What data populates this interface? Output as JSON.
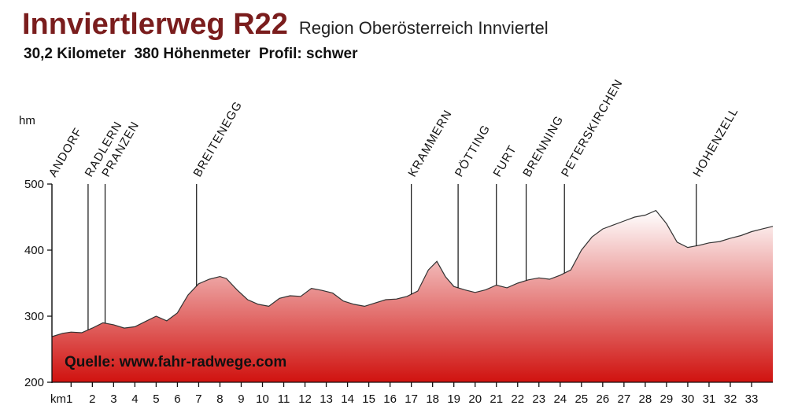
{
  "header": {
    "title": "Innviertlerweg R22",
    "region": "Region Oberösterreich Innviertel",
    "subtitle": "30,2 Kilometer  380 Höhenmeter  Profil: schwer"
  },
  "colors": {
    "title": "#7a1d1d",
    "fill_top": "#ffffff",
    "fill_bottom": "#d0120f"
  },
  "chart_data": {
    "type": "area",
    "title": "Innviertlerweg R22",
    "ylabel": "hm",
    "xlabel": "km1",
    "ylim": [
      200,
      500
    ],
    "xlim": [
      0.1,
      34.0
    ],
    "y_ticks": [
      "200",
      "300",
      "400",
      "500"
    ],
    "x_ticks": [
      "2",
      "3",
      "4",
      "5",
      "6",
      "7",
      "8",
      "9",
      "10",
      "11",
      "12",
      "13",
      "14",
      "15",
      "16",
      "17",
      "18",
      "19",
      "20",
      "21",
      "22",
      "23",
      "24",
      "25",
      "26",
      "27",
      "28",
      "29",
      "30",
      "31",
      "32",
      "33"
    ],
    "source_label": "Quelle: www.fahr-radwege.com",
    "places": [
      {
        "name": "ANDORF",
        "km": 0.1
      },
      {
        "name": "RADLERN",
        "km": 1.8
      },
      {
        "name": "PRANZEN",
        "km": 2.6
      },
      {
        "name": "BREITENEGG",
        "km": 6.9
      },
      {
        "name": "KRAMMERN",
        "km": 17.0
      },
      {
        "name": "PÖTTING",
        "km": 19.2
      },
      {
        "name": "FURT",
        "km": 21.0
      },
      {
        "name": "BRENNING",
        "km": 22.4
      },
      {
        "name": "PETERSKIRCHEN",
        "km": 24.2
      },
      {
        "name": "HOHENZELL",
        "km": 30.4
      }
    ],
    "x": [
      0.1,
      0.6,
      1.0,
      1.5,
      2.0,
      2.5,
      3.0,
      3.5,
      4.0,
      4.5,
      5.0,
      5.5,
      6.0,
      6.5,
      7.0,
      7.5,
      8.0,
      8.3,
      8.8,
      9.3,
      9.8,
      10.3,
      10.8,
      11.3,
      11.8,
      12.3,
      12.8,
      13.3,
      13.8,
      14.3,
      14.8,
      15.3,
      15.8,
      16.3,
      16.8,
      17.3,
      17.8,
      18.2,
      18.6,
      19.0,
      19.5,
      20.0,
      20.5,
      21.0,
      21.5,
      22.0,
      22.5,
      23.0,
      23.5,
      24.0,
      24.5,
      25.0,
      25.5,
      26.0,
      26.5,
      27.0,
      27.5,
      28.0,
      28.5,
      29.0,
      29.5,
      30.0,
      30.5,
      31.0,
      31.5,
      32.0,
      32.5,
      33.0,
      33.5,
      34.0
    ],
    "values": [
      269,
      274,
      276,
      275,
      282,
      290,
      287,
      282,
      284,
      292,
      300,
      293,
      305,
      332,
      349,
      356,
      360,
      357,
      340,
      325,
      318,
      315,
      327,
      331,
      330,
      342,
      339,
      335,
      323,
      318,
      315,
      320,
      325,
      326,
      330,
      338,
      370,
      383,
      360,
      345,
      340,
      336,
      340,
      347,
      343,
      350,
      355,
      358,
      356,
      362,
      370,
      400,
      420,
      432,
      438,
      444,
      450,
      453,
      460,
      440,
      412,
      404,
      407,
      411,
      413,
      418,
      422,
      428,
      432,
      436
    ]
  }
}
